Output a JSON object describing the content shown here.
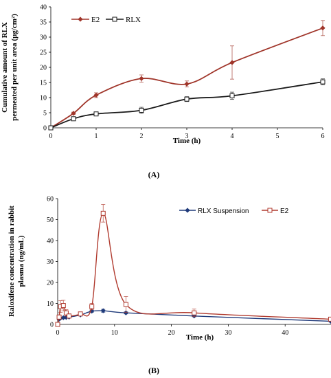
{
  "chart_data": [
    {
      "type": "line",
      "panel_label": "(A)",
      "xlabel": "Time (h)",
      "ylabel_lines": [
        "Cumulative amount of RLX",
        "permeated per unit area (µg/cm²)"
      ],
      "xlim": [
        0,
        6
      ],
      "ylim": [
        0,
        40
      ],
      "xticks": [
        0,
        1,
        2,
        3,
        4,
        5,
        6
      ],
      "yticks": [
        0,
        5,
        10,
        15,
        20,
        25,
        30,
        35,
        40
      ],
      "legend_position": "top-left",
      "grid": false,
      "series": [
        {
          "name": "E2",
          "color": "#a0352a",
          "marker": "diamond",
          "x": [
            0,
            0.5,
            1,
            2,
            3,
            4,
            6
          ],
          "y": [
            0,
            4.8,
            10.8,
            16.3,
            14.5,
            21.6,
            33
          ],
          "err": [
            0,
            0.4,
            0.8,
            1.2,
            1.0,
            5.5,
            2.5
          ]
        },
        {
          "name": "RLX",
          "color": "#1a1a1a",
          "marker": "square",
          "x": [
            0,
            0.5,
            1,
            2,
            3,
            4,
            6
          ],
          "y": [
            0,
            3.0,
            4.6,
            5.8,
            9.5,
            10.6,
            15.2
          ],
          "err": [
            0,
            0.3,
            0.5,
            1.0,
            0.8,
            1.2,
            1.0
          ]
        }
      ]
    },
    {
      "type": "line",
      "panel_label": "(B)",
      "xlabel": "Time (h)",
      "ylabel_lines": [
        "Raloxifene concentration in rabbit",
        "plasma (ng/mL)"
      ],
      "xlim": [
        0,
        50
      ],
      "ylim": [
        0,
        60
      ],
      "xticks": [
        0,
        10,
        20,
        30,
        40,
        50
      ],
      "yticks": [
        0,
        10,
        20,
        30,
        40,
        50,
        60
      ],
      "legend_position": "top-right",
      "grid": false,
      "series": [
        {
          "name": "RLX Suspension",
          "color": "#1f3a7a",
          "marker": "diamond",
          "x": [
            0,
            0.25,
            0.5,
            1,
            1.5,
            2,
            4,
            6,
            8,
            12,
            24,
            48
          ],
          "y": [
            0,
            2.5,
            3.0,
            3.2,
            3.3,
            3.5,
            4.5,
            6.3,
            6.5,
            5.5,
            4.0,
            1.5
          ],
          "err": [
            0,
            0.3,
            0.3,
            0.3,
            0.3,
            0.3,
            0.4,
            0.5,
            0.7,
            0.5,
            0.4,
            0.3
          ]
        },
        {
          "name": "E2",
          "color": "#b03a2e",
          "marker": "square",
          "x": [
            0,
            0.25,
            0.5,
            1,
            1.5,
            2,
            4,
            6,
            8,
            12,
            24,
            48
          ],
          "y": [
            0,
            3.5,
            8.5,
            9.0,
            5.5,
            4.0,
            5.0,
            8.5,
            53,
            9.5,
            5.5,
            2.5
          ],
          "err": [
            0,
            1.0,
            2.8,
            2.5,
            1.5,
            1.0,
            0.8,
            1.5,
            4.2,
            3.8,
            1.8,
            0.8
          ]
        }
      ]
    }
  ]
}
